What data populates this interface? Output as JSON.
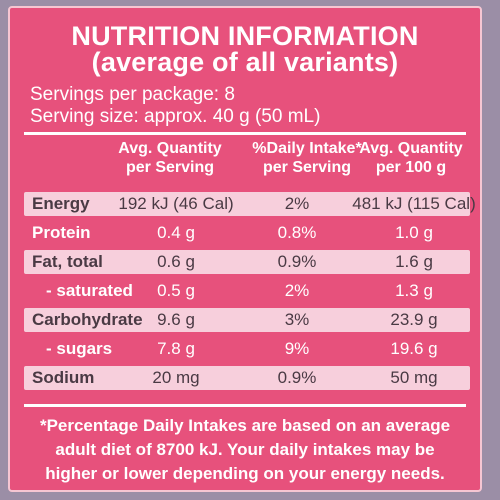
{
  "panel": {
    "title_line1": "NUTRITION INFORMATION",
    "title_line2": "(average of all variants)",
    "servings_per_package": "Servings per package: 8",
    "serving_size": "Serving size: approx. 40 g (50 mL)"
  },
  "columns": {
    "c1_line1": "Avg. Quantity",
    "c1_line2": "per Serving",
    "c2_line1": "%Daily Intake*",
    "c2_line2": "per Serving",
    "c3_line1": "Avg. Quantity",
    "c3_line2": "per 100 g"
  },
  "rows": [
    {
      "label": "Energy",
      "per_serving": "192 kJ (46 Cal)",
      "daily_intake": "2%",
      "per_100g": "481 kJ (115 Cal)"
    },
    {
      "label": "Protein",
      "per_serving": "0.4 g",
      "daily_intake": "0.8%",
      "per_100g": "1.0 g"
    },
    {
      "label": "Fat, total",
      "per_serving": "0.6 g",
      "daily_intake": "0.9%",
      "per_100g": "1.6 g"
    },
    {
      "label": "- saturated",
      "per_serving": "0.5 g",
      "daily_intake": "2%",
      "per_100g": "1.3 g"
    },
    {
      "label": "Carbohydrate",
      "per_serving": "9.6 g",
      "daily_intake": "3%",
      "per_100g": "23.9 g"
    },
    {
      "label": "- sugars",
      "per_serving": "7.8 g",
      "daily_intake": "9%",
      "per_100g": "19.6 g"
    },
    {
      "label": "Sodium",
      "per_serving": "20 mg",
      "daily_intake": "0.9%",
      "per_100g": "50 mg"
    }
  ],
  "footnote": {
    "line1": "*Percentage Daily Intakes are based on an average",
    "line2": "adult diet of 8700 kJ. Your daily intakes may be",
    "line3": "higher or lower depending on your energy needs."
  },
  "colors": {
    "panel": "#e7517c",
    "shade_row": "#f7cfdc",
    "text_on_panel": "#ffffff",
    "text_on_shade": "#4a3a44"
  }
}
